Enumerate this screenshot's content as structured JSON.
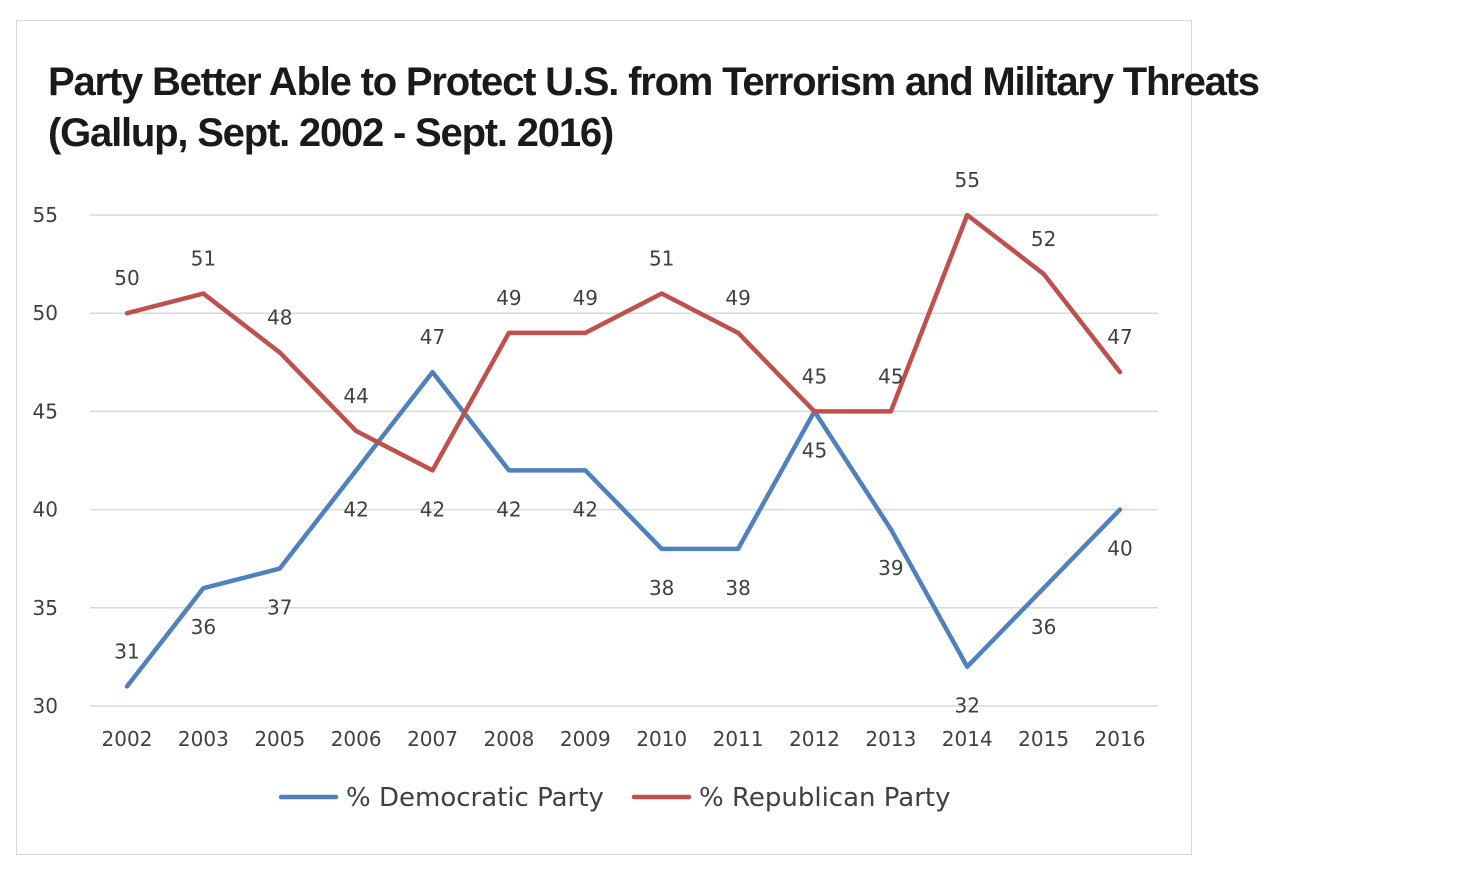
{
  "chart_data": {
    "type": "line",
    "title": "Party Better Able to Protect U.S. from Terrorism and Military Threats",
    "subtitle": "(Gallup, Sept. 2002 - Sept. 2016)",
    "xlabel": "",
    "ylabel": "",
    "categories": [
      "2002",
      "2003",
      "2005",
      "2006",
      "2007",
      "2008",
      "2009",
      "2010",
      "2011",
      "2012",
      "2013",
      "2014",
      "2015",
      "2016"
    ],
    "ylim": [
      30,
      55
    ],
    "yticks": [
      "30",
      "35",
      "40",
      "45",
      "50",
      "55"
    ],
    "grid": true,
    "legend_position": "bottom",
    "series": [
      {
        "name": "% Democratic Party",
        "color": "#4f81bd",
        "values": [
          31,
          36,
          37,
          42,
          47,
          42,
          42,
          38,
          38,
          45,
          39,
          32,
          36,
          40
        ],
        "label_pos": [
          "above",
          "below",
          "below",
          "below",
          "above",
          "below",
          "below",
          "below",
          "below",
          "below",
          "below",
          "below",
          "below",
          "below"
        ]
      },
      {
        "name": "% Republican Party",
        "color": "#c0504d",
        "values": [
          50,
          51,
          48,
          44,
          42,
          49,
          49,
          51,
          49,
          45,
          45,
          55,
          52,
          47
        ],
        "label_pos": [
          "above",
          "above",
          "above",
          "above",
          "below",
          "above",
          "above",
          "above",
          "above",
          "above",
          "above",
          "above",
          "above",
          "above"
        ]
      }
    ]
  }
}
